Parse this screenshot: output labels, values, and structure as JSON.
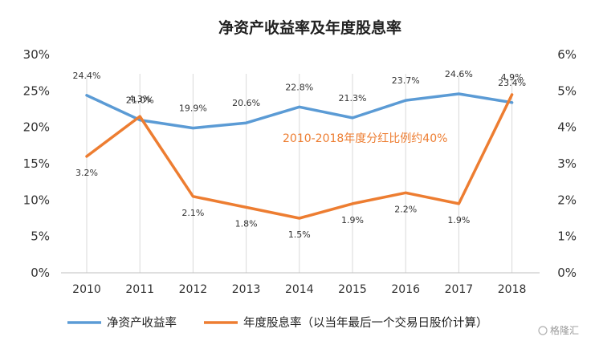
{
  "chart_data": {
    "type": "line",
    "title": "净资产收益率及年度股息率",
    "categories": [
      "2010",
      "2011",
      "2012",
      "2013",
      "2014",
      "2015",
      "2016",
      "2017",
      "2018"
    ],
    "series": [
      {
        "name": "净资产收益率",
        "axis": "left",
        "color": "#5B9BD5",
        "values": [
          24.4,
          21.0,
          19.9,
          20.6,
          22.8,
          21.3,
          23.7,
          24.6,
          23.4
        ],
        "labels": [
          "24.4%",
          "21.0%",
          "19.9%",
          "20.6%",
          "22.8%",
          "21.3%",
          "23.7%",
          "24.6%",
          "23.4%"
        ]
      },
      {
        "name": "年度股息率（以当年最后一个交易日股价计算）",
        "axis": "right",
        "color": "#ED7D31",
        "values": [
          3.2,
          4.3,
          2.1,
          1.8,
          1.5,
          1.9,
          2.2,
          1.9,
          4.9
        ],
        "labels": [
          "3.2%",
          "4.3%",
          "2.1%",
          "1.8%",
          "1.5%",
          "1.9%",
          "2.2%",
          "1.9%",
          "4.9%"
        ]
      }
    ],
    "y_left": {
      "ylim": [
        0,
        30
      ],
      "ticks": [
        "0%",
        "5%",
        "10%",
        "15%",
        "20%",
        "25%",
        "30%"
      ]
    },
    "y_right": {
      "ylim": [
        0,
        6
      ],
      "ticks": [
        "0%",
        "1%",
        "2%",
        "3%",
        "4%",
        "5%",
        "6%"
      ]
    },
    "annotation": "2010-2018年度分红比例约40%",
    "legend_position": "bottom"
  },
  "watermark": "格隆汇"
}
